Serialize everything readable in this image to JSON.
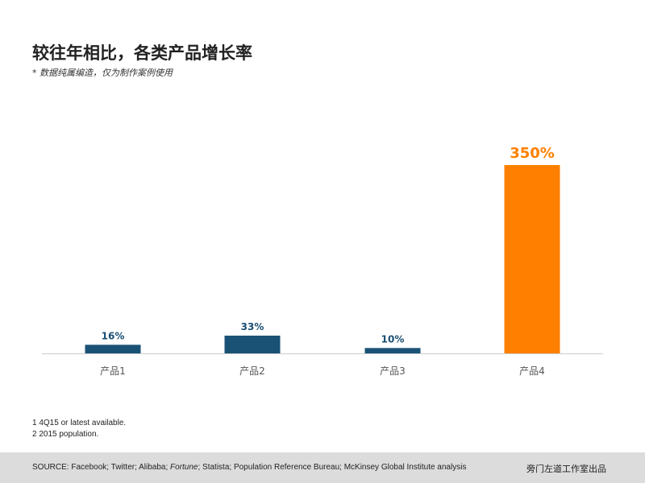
{
  "title": "较往年相比，各类产品增长率",
  "subtitle": "* 数据纯属编造，仅为制作案例使用",
  "colors": {
    "default_bar": "#1a5276",
    "highlight_bar": "#ff8000",
    "axis": "#cccccc",
    "label_default": "#1a4e72",
    "label_highlight": "#ff8000"
  },
  "chart_data": {
    "type": "bar",
    "categories": [
      "产品1",
      "产品2",
      "产品3",
      "产品4"
    ],
    "values": [
      16,
      33,
      10,
      350
    ],
    "data_labels": [
      "16%",
      "33%",
      "10%",
      "350%"
    ],
    "highlight_index": 3,
    "title": "较往年相比，各类产品增长率",
    "xlabel": "",
    "ylabel": "",
    "ylim": [
      0,
      350
    ],
    "grid": false,
    "legend": "none"
  },
  "notes": [
    "1 4Q15 or latest available.",
    "2 2015 population."
  ],
  "footer": {
    "source_prefix": "SOURCE: Facebook; Twitter; Alibaba; ",
    "source_italic": "Fortune",
    "source_suffix": "; Statista; Population Reference Bureau; McKinsey Global Institute analysis",
    "credit": "旁门左道工作室出品"
  }
}
